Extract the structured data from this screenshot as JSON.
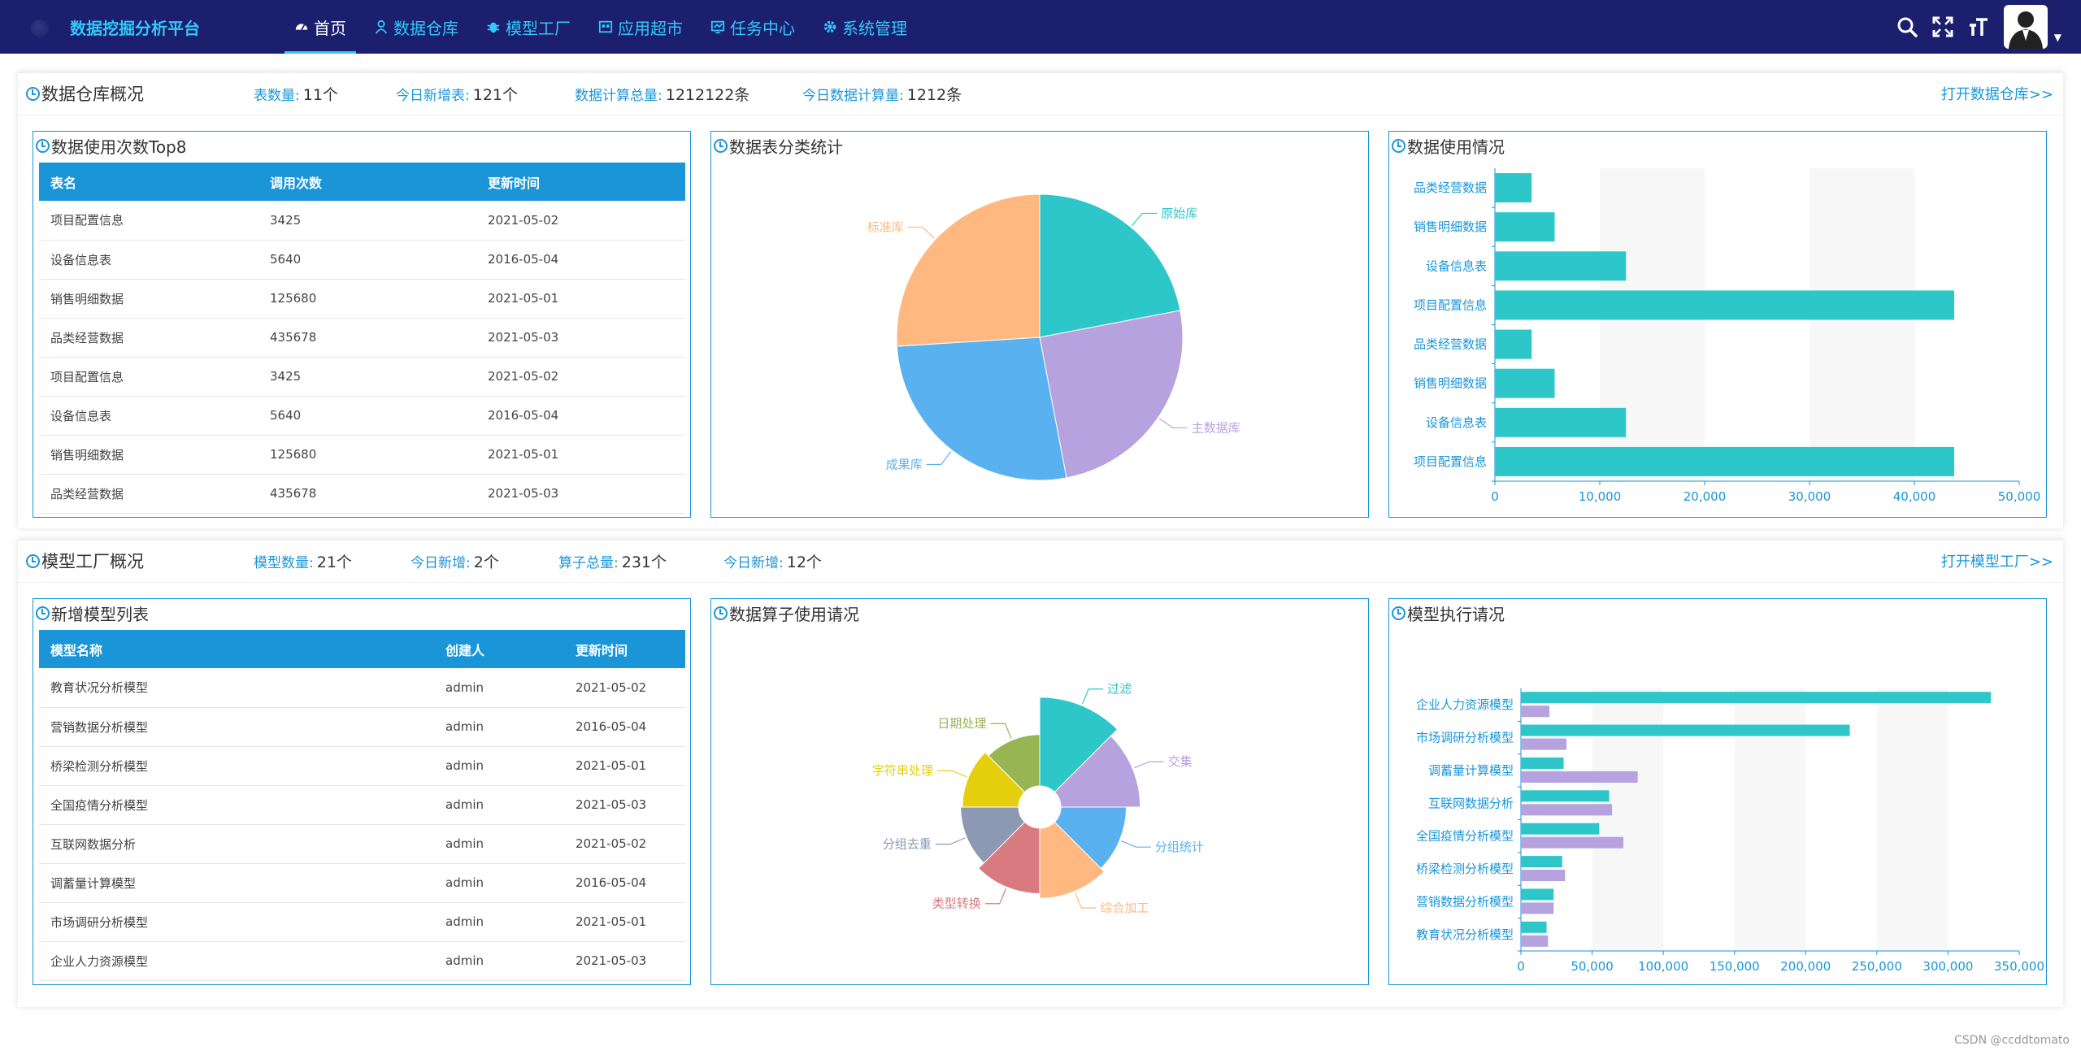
{
  "brand": {
    "title": "数据挖掘分析平台"
  },
  "nav": [
    {
      "label": "首页",
      "icon": "dashboard-icon",
      "active": true
    },
    {
      "label": "数据仓库",
      "icon": "user-icon"
    },
    {
      "label": "模型工厂",
      "icon": "bug-icon"
    },
    {
      "label": "应用超市",
      "icon": "app-icon"
    },
    {
      "label": "任务中心",
      "icon": "chart-icon"
    },
    {
      "label": "系统管理",
      "icon": "gear-icon"
    }
  ],
  "tools": [
    "search-icon",
    "fullscreen-icon",
    "font-size-icon",
    "avatar"
  ],
  "warehouse": {
    "title": "数据仓库概况",
    "stats": [
      {
        "label": "表数量:",
        "value": "11个"
      },
      {
        "label": "今日新增表:",
        "value": "121个"
      },
      {
        "label": "数据计算总量:",
        "value": "1212122条"
      },
      {
        "label": "今日数据计算量:",
        "value": "1212条"
      }
    ],
    "link": "打开数据仓库>>",
    "table_panel": {
      "title": "数据使用次数Top8",
      "columns": [
        "表名",
        "调用次数",
        "更新时间"
      ],
      "rows": [
        [
          "项目配置信息",
          "3425",
          "2021-05-02"
        ],
        [
          "设备信息表",
          "5640",
          "2016-05-04"
        ],
        [
          "销售明细数据",
          "125680",
          "2021-05-01"
        ],
        [
          "品类经营数据",
          "435678",
          "2021-05-03"
        ],
        [
          "项目配置信息",
          "3425",
          "2021-05-02"
        ],
        [
          "设备信息表",
          "5640",
          "2016-05-04"
        ],
        [
          "销售明细数据",
          "125680",
          "2021-05-01"
        ],
        [
          "品类经营数据",
          "435678",
          "2021-05-03"
        ]
      ]
    },
    "pie_panel": {
      "title": "数据表分类统计"
    },
    "bar_panel": {
      "title": "数据使用情况"
    }
  },
  "factory": {
    "title": "模型工厂概况",
    "stats": [
      {
        "label": "模型数量:",
        "value": "21个"
      },
      {
        "label": "今日新增:",
        "value": "2个"
      },
      {
        "label": "算子总量:",
        "value": "231个"
      },
      {
        "label": "今日新增:",
        "value": "12个"
      }
    ],
    "link": "打开模型工厂>>",
    "table_panel": {
      "title": "新增模型列表",
      "columns": [
        "模型名称",
        "创建人",
        "更新时间"
      ],
      "rows": [
        [
          "教育状况分析模型",
          "admin",
          "2021-05-02"
        ],
        [
          "营销数据分析模型",
          "admin",
          "2016-05-04"
        ],
        [
          "桥梁检测分析模型",
          "admin",
          "2021-05-01"
        ],
        [
          "全国疫情分析模型",
          "admin",
          "2021-05-03"
        ],
        [
          "互联网数据分析",
          "admin",
          "2021-05-02"
        ],
        [
          "调蓄量计算模型",
          "admin",
          "2016-05-04"
        ],
        [
          "市场调研分析模型",
          "admin",
          "2021-05-01"
        ],
        [
          "企业人力资源模型",
          "admin",
          "2021-05-03"
        ]
      ]
    },
    "rose_panel": {
      "title": "数据算子使用请况"
    },
    "bar_panel": {
      "title": "模型执行请况"
    }
  },
  "chart_data": [
    {
      "type": "pie",
      "title": "数据表分类统计",
      "labels": [
        "原始库",
        "主数据库",
        "成果库",
        "标准库"
      ],
      "values": [
        22,
        25,
        27,
        26
      ],
      "colors": [
        "#2ec7c9",
        "#b6a2de",
        "#5ab1ef",
        "#ffb980"
      ]
    },
    {
      "type": "bar",
      "orientation": "horizontal",
      "title": "数据使用情况",
      "categories": [
        "项目配置信息",
        "设备信息表",
        "销售明细数据",
        "品类经营数据",
        "项目配置信息",
        "设备信息表",
        "销售明细数据",
        "品类经营数据"
      ],
      "values": [
        43800,
        12500,
        5700,
        3500,
        43800,
        12500,
        5700,
        3500
      ],
      "xlim": [
        0,
        50000
      ],
      "xticks": [
        "0",
        "10,000",
        "20,000",
        "30,000",
        "40,000",
        "50,000"
      ],
      "color": "#2ec7c9"
    },
    {
      "type": "pie",
      "variant": "rose",
      "title": "数据算子使用请况",
      "labels": [
        "过滤",
        "交集",
        "分组统计",
        "综合加工",
        "类型转换",
        "分组去重",
        "字符串处理",
        "日期处理"
      ],
      "values": [
        95,
        85,
        70,
        75,
        70,
        62,
        60,
        55
      ],
      "colors": [
        "#2ec7c9",
        "#b6a2de",
        "#5ab1ef",
        "#ffb980",
        "#d87a80",
        "#8d98b3",
        "#e5cf0d",
        "#97b552"
      ]
    },
    {
      "type": "bar",
      "orientation": "horizontal",
      "title": "模型执行请况",
      "categories": [
        "教育状况分析模型",
        "营销数据分析模型",
        "桥梁检测分析模型",
        "全国疫情分析模型",
        "互联网数据分析",
        "调蓄量计算模型",
        "市场调研分析模型",
        "企业人力资源模型"
      ],
      "series": [
        {
          "values": [
            18000,
            23000,
            29000,
            55000,
            62000,
            30000,
            231000,
            330000
          ],
          "color": "#2ec7c9"
        },
        {
          "values": [
            19000,
            23000,
            31000,
            72000,
            64000,
            82000,
            32000,
            20000
          ],
          "color": "#b6a2de"
        }
      ],
      "xlim": [
        0,
        350000
      ],
      "xticks": [
        "0",
        "50,000",
        "100,000",
        "150,000",
        "200,000",
        "250,000",
        "300,000",
        "350,000"
      ]
    }
  ],
  "watermark": "CSDN @ccddtomato"
}
